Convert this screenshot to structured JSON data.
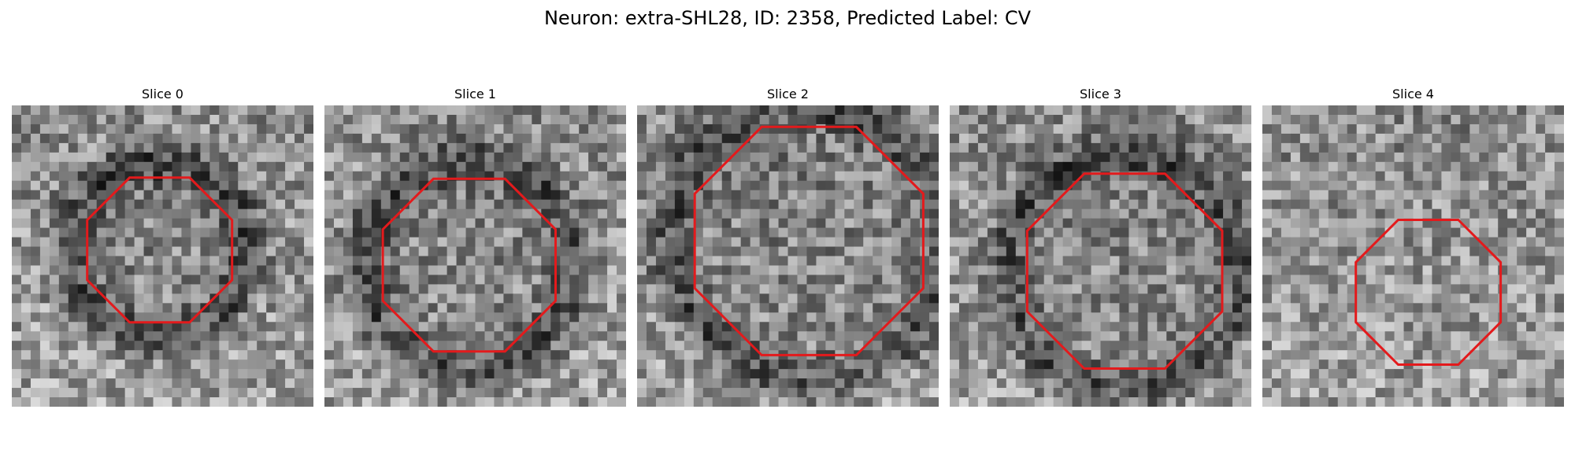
{
  "figure": {
    "title": "Neuron: extra-SHL28, ID: 2358, Predicted Label: CV",
    "contour_color": "#e31a1c",
    "slices": [
      {
        "title": "Slice 0",
        "contour_center": [
          0.49,
          0.48
        ],
        "contour_radius": 0.26,
        "dark_ring": true
      },
      {
        "title": "Slice 1",
        "contour_center": [
          0.48,
          0.53
        ],
        "contour_radius": 0.31,
        "dark_ring": true
      },
      {
        "title": "Slice 2",
        "contour_center": [
          0.57,
          0.45
        ],
        "contour_radius": 0.41,
        "dark_ring": true
      },
      {
        "title": "Slice 3",
        "contour_center": [
          0.58,
          0.55
        ],
        "contour_radius": 0.35,
        "dark_ring": true
      },
      {
        "title": "Slice 4",
        "contour_center": [
          0.55,
          0.62
        ],
        "contour_radius": 0.26,
        "dark_ring": false
      }
    ]
  }
}
